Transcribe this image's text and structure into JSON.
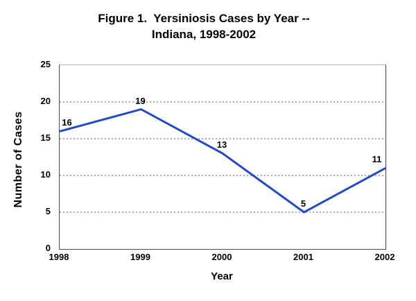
{
  "title_line1": "Figure 1.  Yersiniosis Cases by Year --",
  "title_line2": "Indiana, 1998-2002",
  "chart_data": {
    "type": "line",
    "title": "Figure 1. Yersiniosis Cases by Year -- Indiana, 1998-2002",
    "categories": [
      "1998",
      "1999",
      "2000",
      "2001",
      "2002"
    ],
    "series": [
      {
        "name": "Yersiniosis cases",
        "values": [
          16,
          19,
          13,
          5,
          11
        ]
      }
    ],
    "data_labels": [
      16,
      19,
      13,
      5,
      11
    ],
    "xlabel": "Year",
    "ylabel": "Number of Cases",
    "ylim": [
      0,
      25
    ],
    "yticks": [
      0,
      5,
      10,
      15,
      20,
      25
    ],
    "gridline_values": [
      5,
      10,
      15,
      20
    ],
    "grid": "dotted horizontal",
    "legend": "none",
    "line_color": "#2349c6",
    "gridline_color": "#8f8f8f",
    "text_color": "#000000",
    "background_color": "#ffffff"
  }
}
